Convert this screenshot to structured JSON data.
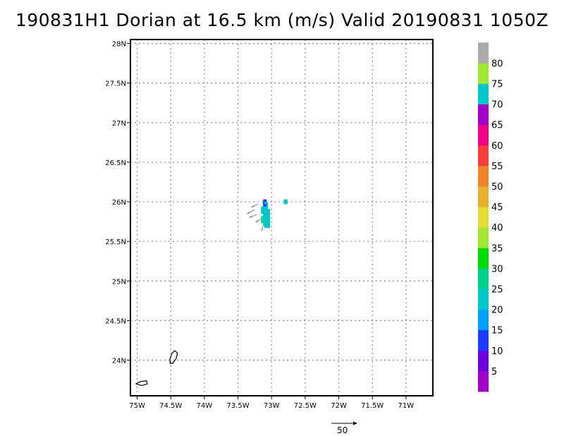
{
  "title": "190831H1 Dorian at 16.5 km (m/s) Valid 20190831  1050Z",
  "map": {
    "lon_ticks": [
      {
        "label": "75W",
        "lon": -75
      },
      {
        "label": "74.5W",
        "lon": -74.5
      },
      {
        "label": "74W",
        "lon": -74
      },
      {
        "label": "73.5W",
        "lon": -73.5
      },
      {
        "label": "73W",
        "lon": -73
      },
      {
        "label": "72.5W",
        "lon": -72.5
      },
      {
        "label": "72W",
        "lon": -72
      },
      {
        "label": "71.5W",
        "lon": -71.5
      },
      {
        "label": "71W",
        "lon": -71
      }
    ],
    "lat_ticks": [
      {
        "label": "24N",
        "lat": 24
      },
      {
        "label": "24.5N",
        "lat": 24.5
      },
      {
        "label": "25N",
        "lat": 25
      },
      {
        "label": "25.5N",
        "lat": 25.5
      },
      {
        "label": "26N",
        "lat": 26
      },
      {
        "label": "26.5N",
        "lat": 26.5
      },
      {
        "label": "27N",
        "lat": 27
      },
      {
        "label": "27.5N",
        "lat": 27.5
      },
      {
        "label": "28N",
        "lat": 28
      }
    ],
    "lon_range": [
      -75.1,
      -70.6
    ],
    "lat_range": [
      23.55,
      28.05
    ],
    "grid": true,
    "wind_cells": [
      {
        "lon": -73.1,
        "lat": 26.0,
        "color": "#1e3cff"
      },
      {
        "lon": -73.1,
        "lat": 25.97,
        "color": "#1e3cff"
      },
      {
        "lon": -73.08,
        "lat": 25.97,
        "color": "#00c8c8"
      },
      {
        "lon": -73.1,
        "lat": 25.94,
        "color": "#1e3cff"
      },
      {
        "lon": -73.13,
        "lat": 25.91,
        "color": "#00c8c8"
      },
      {
        "lon": -73.1,
        "lat": 25.91,
        "color": "#00c8c8"
      },
      {
        "lon": -73.08,
        "lat": 25.91,
        "color": "#00c8c8"
      },
      {
        "lon": -73.13,
        "lat": 25.88,
        "color": "#00c8c8"
      },
      {
        "lon": -73.1,
        "lat": 25.88,
        "color": "#00c8c8"
      },
      {
        "lon": -73.08,
        "lat": 25.88,
        "color": "#00c8c8"
      },
      {
        "lon": -73.05,
        "lat": 25.88,
        "color": "#00c8c8"
      },
      {
        "lon": -73.1,
        "lat": 25.85,
        "color": "#00c8c8"
      },
      {
        "lon": -73.08,
        "lat": 25.85,
        "color": "#00c8c8"
      },
      {
        "lon": -73.05,
        "lat": 25.85,
        "color": "#00c8c8"
      },
      {
        "lon": -73.1,
        "lat": 25.82,
        "color": "#00c8c8"
      },
      {
        "lon": -73.08,
        "lat": 25.82,
        "color": "#00c8c8"
      },
      {
        "lon": -73.05,
        "lat": 25.82,
        "color": "#00c8c8"
      },
      {
        "lon": -73.13,
        "lat": 25.79,
        "color": "#00dc8c"
      },
      {
        "lon": -73.1,
        "lat": 25.79,
        "color": "#00c8c8"
      },
      {
        "lon": -73.08,
        "lat": 25.79,
        "color": "#00c8c8"
      },
      {
        "lon": -73.05,
        "lat": 25.79,
        "color": "#00c8c8"
      },
      {
        "lon": -73.13,
        "lat": 25.76,
        "color": "#00dc8c"
      },
      {
        "lon": -73.1,
        "lat": 25.76,
        "color": "#00dc8c"
      },
      {
        "lon": -73.08,
        "lat": 25.76,
        "color": "#00c8c8"
      },
      {
        "lon": -73.05,
        "lat": 25.76,
        "color": "#00c8c8"
      },
      {
        "lon": -73.1,
        "lat": 25.73,
        "color": "#00c8c8"
      },
      {
        "lon": -73.08,
        "lat": 25.73,
        "color": "#00c8c8"
      },
      {
        "lon": -73.05,
        "lat": 25.73,
        "color": "#00c8c8"
      },
      {
        "lon": -73.08,
        "lat": 25.7,
        "color": "#00c8c8"
      },
      {
        "lon": -73.05,
        "lat": 25.7,
        "color": "#00c8c8"
      },
      {
        "lon": -72.79,
        "lat": 26.0,
        "color": "#00c8c8"
      }
    ],
    "wind_vectors": [
      {
        "lon": -73.2,
        "lat": 25.97,
        "u": -14,
        "v": -6
      },
      {
        "lon": -73.25,
        "lat": 25.9,
        "u": -16,
        "v": -8
      },
      {
        "lon": -73.22,
        "lat": 25.84,
        "u": -15,
        "v": -6
      },
      {
        "lon": -73.15,
        "lat": 25.79,
        "u": -12,
        "v": -8
      },
      {
        "lon": -73.12,
        "lat": 25.72,
        "u": -4,
        "v": -14
      }
    ],
    "coastlines": [
      [
        [
          -74.44,
          24.12
        ],
        [
          -74.4,
          24.09
        ],
        [
          -74.42,
          24.02
        ],
        [
          -74.47,
          23.96
        ],
        [
          -74.51,
          23.96
        ],
        [
          -74.51,
          24.02
        ],
        [
          -74.48,
          24.09
        ],
        [
          -74.44,
          24.12
        ]
      ],
      [
        [
          -75.02,
          23.7
        ],
        [
          -74.95,
          23.73
        ],
        [
          -74.86,
          23.74
        ],
        [
          -74.85,
          23.7
        ],
        [
          -74.93,
          23.68
        ],
        [
          -75.02,
          23.7
        ]
      ]
    ]
  },
  "reference_vector": {
    "label": "50",
    "value": 50
  },
  "colorbar": {
    "labels": [
      "5",
      "10",
      "15",
      "20",
      "25",
      "30",
      "35",
      "40",
      "45",
      "50",
      "55",
      "60",
      "65",
      "70",
      "75",
      "80"
    ],
    "colors": [
      "#a000c8",
      "#6e00dc",
      "#1e3cff",
      "#00a0ff",
      "#00c8c8",
      "#00d28c",
      "#00dc00",
      "#a0e632",
      "#e6dc32",
      "#e6af2d",
      "#f08228",
      "#fa3c3c",
      "#f00082",
      "#a000c8",
      "#00c8c8",
      "#a0e632",
      "#aaaaaa"
    ]
  }
}
